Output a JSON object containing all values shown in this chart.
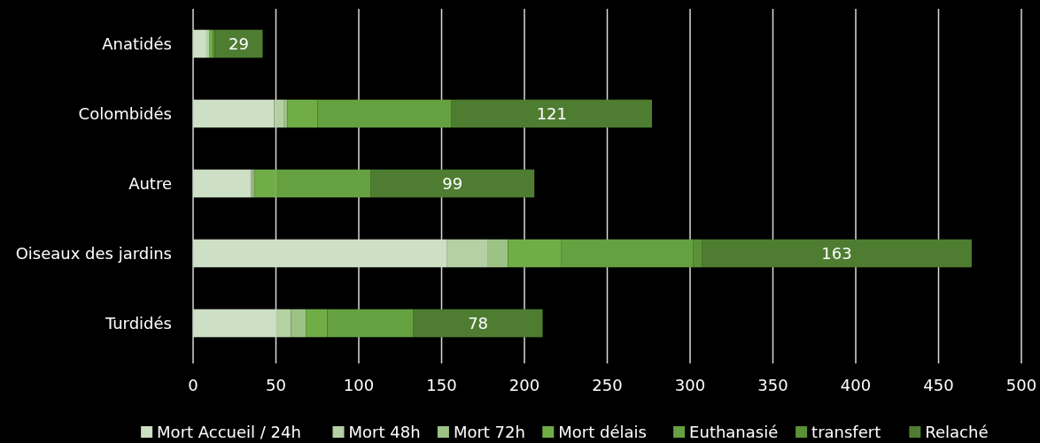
{
  "chart_data": {
    "type": "bar",
    "orientation": "horizontal",
    "stacked": true,
    "categories": [
      "Anatidés",
      "Colombidés",
      "Autre",
      "Oiseaux des jardins",
      "Turdidés"
    ],
    "series": [
      {
        "name": "Mort Accueil / 24h",
        "color": "#cddfc4",
        "values": [
          8,
          49,
          35,
          153,
          50
        ]
      },
      {
        "name": "Mort 48h",
        "color": "#b5d1a3",
        "values": [
          2,
          6,
          1,
          25,
          9
        ]
      },
      {
        "name": "Mort 72h",
        "color": "#9cc385",
        "values": [
          0,
          2,
          1,
          12,
          9
        ]
      },
      {
        "name": "Mort délais",
        "color": "#70ad47",
        "values": [
          2,
          18,
          13,
          32,
          13
        ]
      },
      {
        "name": "Euthanasié",
        "color": "#65a041",
        "values": [
          1,
          81,
          57,
          80,
          52
        ]
      },
      {
        "name": "transfert",
        "color": "#5b9138",
        "values": [
          0,
          0,
          0,
          5,
          0
        ]
      },
      {
        "name": "Relaché",
        "color": "#4e7d32",
        "values": [
          29,
          121,
          99,
          163,
          78
        ],
        "value_labels": [
          "29",
          "121",
          "99",
          "163",
          "78"
        ]
      }
    ],
    "xlim": [
      0,
      500
    ],
    "xticks": [
      0,
      50,
      100,
      150,
      200,
      250,
      300,
      350,
      400,
      450,
      500
    ],
    "grid": "x",
    "legend": "bottom"
  }
}
